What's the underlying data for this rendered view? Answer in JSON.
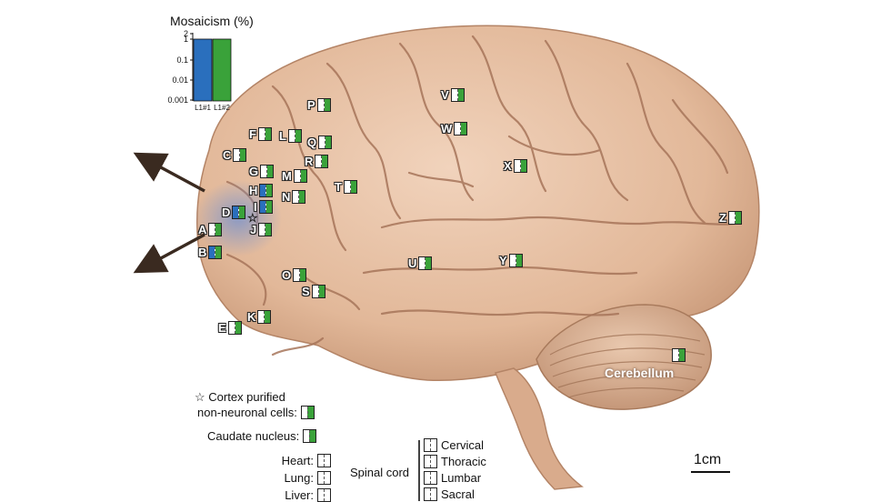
{
  "colors": {
    "l1_1": "#2a6fbd",
    "l1_2": "#3aa23a",
    "tissue": "#e6bfa2",
    "outline": "#222222"
  },
  "inset_chart": {
    "title": "Mosaicism (%)",
    "ticks": [
      "2",
      "1",
      "0.1",
      "0.01",
      "0.001"
    ],
    "bars": [
      {
        "label": "L1#1",
        "value": 1
      },
      {
        "label": "L1#2",
        "value": 1
      }
    ]
  },
  "regions": [
    {
      "label": "A",
      "l1_1": 0,
      "l1_2": 1
    },
    {
      "label": "B",
      "l1_1": 1,
      "l1_2": 1
    },
    {
      "label": "C",
      "l1_1": 0,
      "l1_2": 1
    },
    {
      "label": "D",
      "l1_1": 1,
      "l1_2": 1
    },
    {
      "label": "E",
      "l1_1": 0,
      "l1_2": 1
    },
    {
      "label": "F",
      "l1_1": 0,
      "l1_2": 1
    },
    {
      "label": "G",
      "l1_1": 0,
      "l1_2": 1
    },
    {
      "label": "H",
      "l1_1": 1,
      "l1_2": 1
    },
    {
      "label": "I",
      "l1_1": 1,
      "l1_2": 1
    },
    {
      "label": "J",
      "l1_1": 0,
      "l1_2": 1
    },
    {
      "label": "K",
      "l1_1": 0,
      "l1_2": 1
    },
    {
      "label": "L",
      "l1_1": 0,
      "l1_2": 1
    },
    {
      "label": "M",
      "l1_1": 0,
      "l1_2": 1
    },
    {
      "label": "N",
      "l1_1": 0,
      "l1_2": 1
    },
    {
      "label": "O",
      "l1_1": 0,
      "l1_2": 1
    },
    {
      "label": "P",
      "l1_1": 0,
      "l1_2": 1
    },
    {
      "label": "Q",
      "l1_1": 0,
      "l1_2": 1
    },
    {
      "label": "R",
      "l1_1": 0,
      "l1_2": 1
    },
    {
      "label": "S",
      "l1_1": 0,
      "l1_2": 1
    },
    {
      "label": "T",
      "l1_1": 0,
      "l1_2": 1
    },
    {
      "label": "U",
      "l1_1": 0,
      "l1_2": 1
    },
    {
      "label": "V",
      "l1_1": 0,
      "l1_2": 1
    },
    {
      "label": "W",
      "l1_1": 0,
      "l1_2": 1
    },
    {
      "label": "X",
      "l1_1": 0,
      "l1_2": 1
    },
    {
      "label": "Y",
      "l1_1": 0,
      "l1_2": 1
    },
    {
      "label": "Z",
      "l1_1": 0,
      "l1_2": 1
    }
  ],
  "cerebellum": {
    "label": "Cerebellum",
    "l1_1": 0,
    "l1_2": 1
  },
  "legend": {
    "star_line1": "Cortex purified",
    "star_line2": "non-neuronal cells:",
    "caudate": "Caudate nucleus:",
    "organs": [
      "Heart:",
      "Lung:",
      "Liver:"
    ],
    "spinal_cord": "Spinal cord",
    "spinal_segments": [
      "Cervical",
      "Thoracic",
      "Lumbar",
      "Sacral"
    ]
  },
  "scale_bar": "1cm"
}
